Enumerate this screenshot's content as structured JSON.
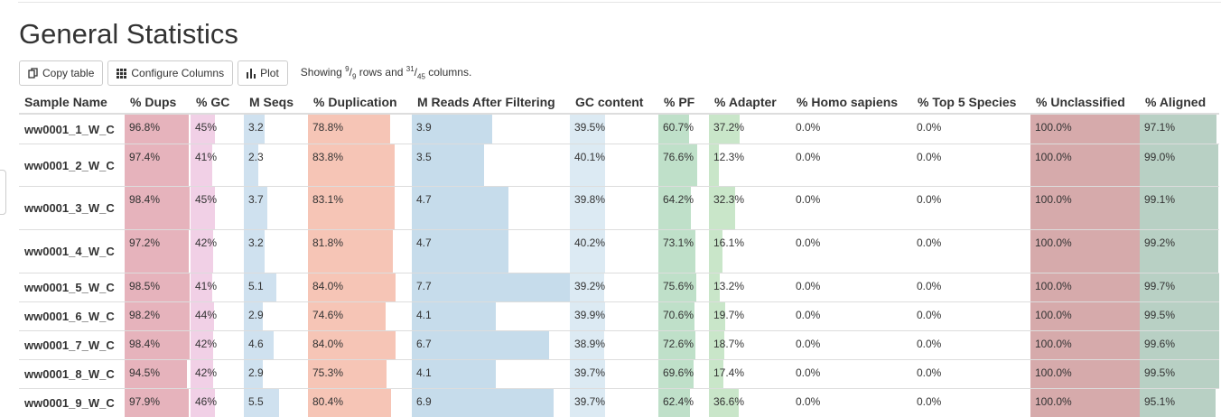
{
  "title": "General Statistics",
  "toolbar": {
    "copy_label": "Copy table",
    "configure_label": "Configure Columns",
    "plot_label": "Plot",
    "showing_prefix": "Showing ",
    "rows_shown": "9",
    "rows_total": "9",
    "rows_suffix": " rows and ",
    "cols_shown": "31",
    "cols_total": "45",
    "cols_suffix": " columns."
  },
  "columns": [
    {
      "label": "Sample Name"
    },
    {
      "label": "% Dups",
      "max": 100,
      "color": "#e6b3bc"
    },
    {
      "label": "% GC",
      "max": 100,
      "color": "#f1d0e6"
    },
    {
      "label": "M Seqs",
      "max": 10,
      "color": "#cfe1ef"
    },
    {
      "label": "% Duplication",
      "max": 100,
      "color": "#f6c5b6"
    },
    {
      "label": "M Reads After Filtering",
      "max": 7.7,
      "color": "#c6dceb"
    },
    {
      "label": "GC content",
      "max": 100,
      "color": "#dceaf3"
    },
    {
      "label": "% PF",
      "max": 100,
      "color": "#bfe0c9"
    },
    {
      "label": "% Adapter",
      "max": 100,
      "color": "#c9e6c9"
    },
    {
      "label": "% Homo sapiens",
      "max": 100,
      "color": "#ffffff"
    },
    {
      "label": "% Top 5 Species",
      "max": 100,
      "color": "#ffffff"
    },
    {
      "label": "% Unclassified",
      "max": 100,
      "color": "#d6aaab"
    },
    {
      "label": "% Aligned",
      "max": 100,
      "color": "#b8d0c4"
    }
  ],
  "rows": [
    {
      "name": "ww0001_1_W_C",
      "cells": [
        "96.8%",
        "45%",
        "3.2",
        "78.8%",
        "3.9",
        "39.5%",
        "60.7%",
        "37.2%",
        "0.0%",
        "0.0%",
        "100.0%",
        "97.1%"
      ],
      "values": [
        96.8,
        45,
        3.2,
        78.8,
        3.9,
        39.5,
        60.7,
        37.2,
        0,
        0,
        100,
        97.1
      ]
    },
    {
      "name": "ww0001_2_W_C",
      "cells": [
        "97.4%",
        "41%",
        "2.3",
        "83.8%",
        "3.5",
        "40.1%",
        "76.6%",
        "12.3%",
        "0.0%",
        "0.0%",
        "100.0%",
        "99.0%"
      ],
      "values": [
        97.4,
        41,
        2.3,
        83.8,
        3.5,
        40.1,
        76.6,
        12.3,
        0,
        0,
        100,
        99.0
      ]
    },
    {
      "name": "ww0001_3_W_C",
      "cells": [
        "98.4%",
        "45%",
        "3.7",
        "83.1%",
        "4.7",
        "39.8%",
        "64.2%",
        "32.3%",
        "0.0%",
        "0.0%",
        "100.0%",
        "99.1%"
      ],
      "values": [
        98.4,
        45,
        3.7,
        83.1,
        4.7,
        39.8,
        64.2,
        32.3,
        0,
        0,
        100,
        99.1
      ]
    },
    {
      "name": "ww0001_4_W_C",
      "cells": [
        "97.2%",
        "42%",
        "3.2",
        "81.8%",
        "4.7",
        "40.2%",
        "73.1%",
        "16.1%",
        "0.0%",
        "0.0%",
        "100.0%",
        "99.2%"
      ],
      "values": [
        97.2,
        42,
        3.2,
        81.8,
        4.7,
        40.2,
        73.1,
        16.1,
        0,
        0,
        100,
        99.2
      ]
    },
    {
      "name": "ww0001_5_W_C",
      "cells": [
        "98.5%",
        "41%",
        "5.1",
        "84.0%",
        "7.7",
        "39.2%",
        "75.6%",
        "13.2%",
        "0.0%",
        "0.0%",
        "100.0%",
        "99.7%"
      ],
      "values": [
        98.5,
        41,
        5.1,
        84.0,
        7.7,
        39.2,
        75.6,
        13.2,
        0,
        0,
        100,
        99.7
      ]
    },
    {
      "name": "ww0001_6_W_C",
      "cells": [
        "98.2%",
        "44%",
        "2.9",
        "74.6%",
        "4.1",
        "39.9%",
        "70.6%",
        "19.7%",
        "0.0%",
        "0.0%",
        "100.0%",
        "99.5%"
      ],
      "values": [
        98.2,
        44,
        2.9,
        74.6,
        4.1,
        39.9,
        70.6,
        19.7,
        0,
        0,
        100,
        99.5
      ]
    },
    {
      "name": "ww0001_7_W_C",
      "cells": [
        "98.4%",
        "42%",
        "4.6",
        "84.0%",
        "6.7",
        "38.9%",
        "72.6%",
        "18.7%",
        "0.0%",
        "0.0%",
        "100.0%",
        "99.6%"
      ],
      "values": [
        98.4,
        42,
        4.6,
        84.0,
        6.7,
        38.9,
        72.6,
        18.7,
        0,
        0,
        100,
        99.6
      ]
    },
    {
      "name": "ww0001_8_W_C",
      "cells": [
        "94.5%",
        "42%",
        "2.9",
        "75.3%",
        "4.1",
        "39.7%",
        "69.6%",
        "17.4%",
        "0.0%",
        "0.0%",
        "100.0%",
        "99.5%"
      ],
      "values": [
        94.5,
        42,
        2.9,
        75.3,
        4.1,
        39.7,
        69.6,
        17.4,
        0,
        0,
        100,
        99.5
      ]
    },
    {
      "name": "ww0001_9_W_C",
      "cells": [
        "97.9%",
        "46%",
        "5.5",
        "80.4%",
        "6.9",
        "39.7%",
        "62.4%",
        "36.6%",
        "0.0%",
        "0.0%",
        "100.0%",
        "95.1%"
      ],
      "values": [
        97.9,
        46,
        5.5,
        80.4,
        6.9,
        39.7,
        62.4,
        36.6,
        0,
        0,
        100,
        95.1
      ]
    }
  ]
}
